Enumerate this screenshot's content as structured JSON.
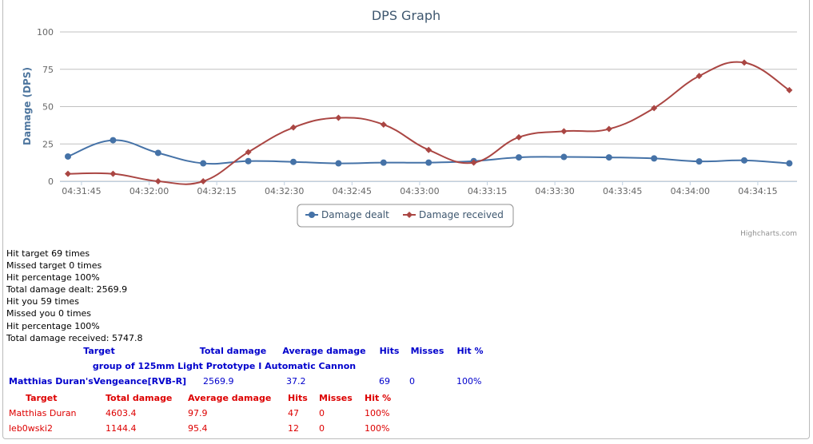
{
  "chart_data": {
    "type": "line",
    "title": "DPS Graph",
    "ylabel": "Damage (DPS)",
    "xlabel": "",
    "ylim": [
      0,
      100
    ],
    "yticks": [
      0,
      25,
      50,
      75,
      100
    ],
    "xticks": [
      "04:31:45",
      "04:32:00",
      "04:32:15",
      "04:32:30",
      "04:32:45",
      "04:33:00",
      "04:33:15",
      "04:33:30",
      "04:33:45",
      "04:34:00",
      "04:34:15"
    ],
    "x": [
      "04:31:42",
      "04:31:52",
      "04:32:02",
      "04:32:12",
      "04:32:22",
      "04:32:32",
      "04:32:42",
      "04:32:52",
      "04:33:02",
      "04:33:12",
      "04:33:22",
      "04:33:32",
      "04:33:42",
      "04:33:52",
      "04:34:02",
      "04:34:12",
      "04:34:22"
    ],
    "series": [
      {
        "name": "Damage dealt",
        "color": "#4572A7",
        "marker": "circle",
        "values": [
          16.6,
          27.5,
          19,
          12,
          13.5,
          13,
          12,
          12.5,
          12.5,
          13.5,
          16,
          16.3,
          16,
          15.3,
          13.3,
          14,
          12
        ]
      },
      {
        "name": "Damage received",
        "color": "#AA4643",
        "marker": "diamond",
        "values": [
          5,
          5,
          0,
          0,
          19.5,
          36,
          42.5,
          38,
          21,
          12.5,
          29.5,
          33.5,
          35,
          49,
          70.5,
          79.5,
          61
        ]
      }
    ],
    "legend": "bottom-center",
    "grid": true,
    "credits": "Highcharts.com"
  },
  "stats": [
    "Hit target 69 times",
    "Missed target 0 times",
    "Hit percentage 100%",
    "Total damage dealt: 2569.9",
    "Hit you 59 times",
    "Missed you 0 times",
    "Hit percentage 100%",
    "Total damage received: 5747.8"
  ],
  "dealt_table": {
    "headers": [
      "Target",
      "Total damage",
      "Average damage",
      "Hits",
      "Misses",
      "Hit %"
    ],
    "group": "group of 125mm Light Prototype I Automatic Cannon",
    "row": [
      "Matthias Duran'sVengeance[RVB-R]",
      "2569.9",
      "37.2",
      "69",
      "0",
      "100%"
    ]
  },
  "received_table": {
    "headers": [
      "Target",
      "Total damage",
      "Average damage",
      "Hits",
      "Misses",
      "Hit %"
    ],
    "rows": [
      [
        "Matthias Duran",
        "4603.4",
        "97.9",
        "47",
        "0",
        "100%"
      ],
      [
        "leb0wski2",
        "1144.4",
        "95.4",
        "12",
        "0",
        "100%"
      ]
    ]
  }
}
